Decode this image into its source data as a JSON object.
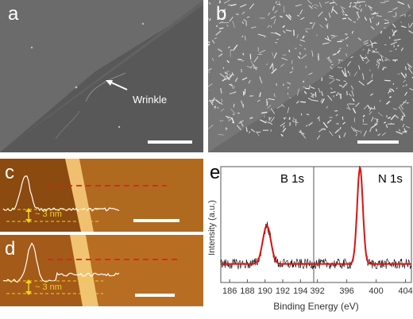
{
  "panels": {
    "a": {
      "label": "a",
      "annotation": "Wrinkle"
    },
    "b": {
      "label": "b"
    },
    "c": {
      "label": "c",
      "height_label": "~ 3 nm"
    },
    "d": {
      "label": "d",
      "height_label": "~ 3 nm"
    },
    "e": {
      "label": "e"
    }
  },
  "chart_data": {
    "type": "line",
    "title": "",
    "xlabel": "Binding Energy (eV)",
    "ylabel": "Intensity (a.u.)",
    "grid": false,
    "series": [
      {
        "name": "B 1s",
        "xlim": [
          185,
          195.5
        ],
        "xticks": [
          186,
          188,
          190,
          192,
          194
        ],
        "peak_center": 190.2,
        "peak_width": 0.65,
        "baseline": 0.16,
        "peak_height": 0.33
      },
      {
        "name": "N 1s",
        "xlim": [
          391.5,
          404.8
        ],
        "xticks": [
          392,
          396,
          400,
          404
        ],
        "peak_center": 397.8,
        "peak_width": 0.55,
        "baseline": 0.16,
        "peak_height": 0.83
      }
    ],
    "fit_color": "#e01010",
    "raw_color": "#000000"
  }
}
